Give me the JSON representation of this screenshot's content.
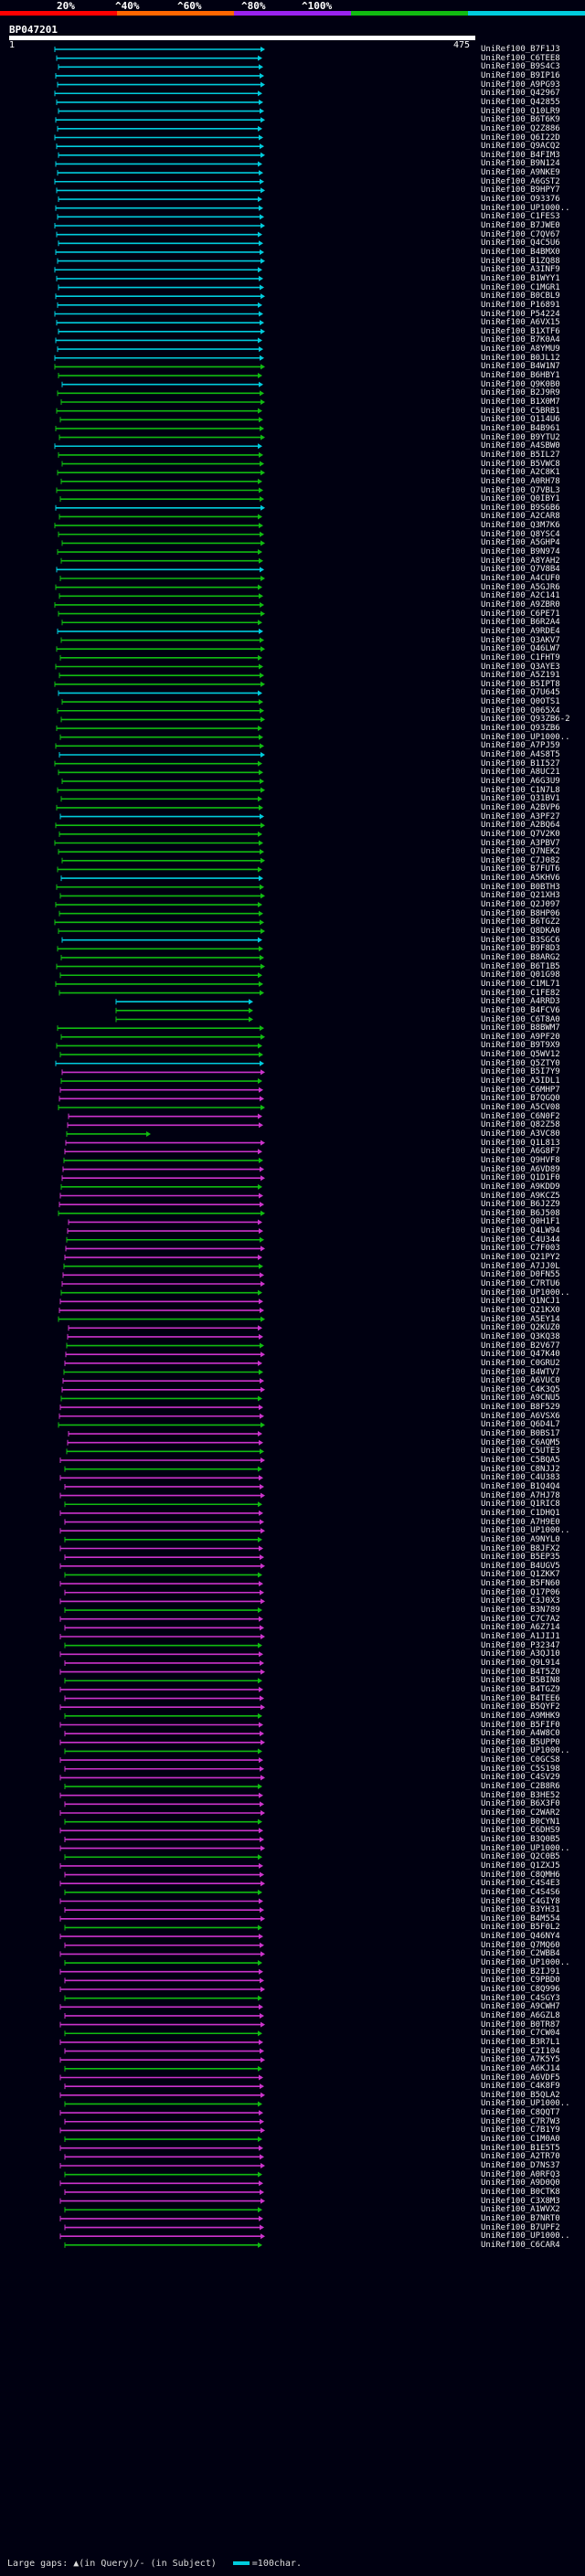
{
  "scale": {
    "labels": [
      "20%",
      "^40%",
      "^60%",
      "^80%",
      "^100%"
    ],
    "colors": [
      "#ff0000",
      "#ff6600",
      "#9922ee",
      "#11bb11",
      "#00ccdd"
    ]
  },
  "query": {
    "id": "BP047201",
    "start": "1",
    "end": "475"
  },
  "footer": {
    "text": "Large gaps: ▲(in Query)/- (in Subject)",
    "legend": "=100char."
  },
  "hit_colors": {
    "cyan": "#00ccdd",
    "green": "#11bb11",
    "magenta": "#cc33cc"
  },
  "hits": [
    "UniRef100_B7F1J3",
    "UniRef100_C6TEE8",
    "UniRef100_B9S4C3",
    "UniRef100_B9IP16",
    "UniRef100_A9PG93",
    "UniRef100_Q42967",
    "UniRef100_Q42855",
    "UniRef100_Q10LR9",
    "UniRef100_B6T6K9",
    "UniRef100_Q2Z886",
    "UniRef100_Q6I22D",
    "UniRef100_Q9ACQ2",
    "UniRef100_B4FIM3",
    "UniRef100_B9N124",
    "UniRef100_A9NKE9",
    "UniRef100_A6GST2",
    "UniRef100_B9HPY7",
    "UniRef100_O93376",
    "UniRef100_UP1000..",
    "UniRef100_C1FES3",
    "UniRef100_B7JWE0",
    "UniRef100_C7QV67",
    "UniRef100_Q4C5U6",
    "UniRef100_B4BMX0",
    "UniRef100_B1ZQ88",
    "UniRef100_A3INF9",
    "UniRef100_B1WYY1",
    "UniRef100_C1MGR1",
    "UniRef100_B0CBL9",
    "UniRef100_P16891",
    "UniRef100_P54224",
    "UniRef100_A6VX15",
    "UniRef100_B1XTF6",
    "UniRef100_B7K0A4",
    "UniRef100_A8YMU9",
    "UniRef100_B0JL12",
    "UniRef100_B4W1N7",
    "UniRef100_B6HBY1",
    "UniRef100_Q9K0B0",
    "UniRef100_B2J9R9",
    "UniRef100_B1X0M7",
    "UniRef100_C5BRB1",
    "UniRef100_Q114U6",
    "UniRef100_B4B961",
    "UniRef100_B9YTU2",
    "UniRef100_A4SBW0",
    "UniRef100_B5IL27",
    "UniRef100_B5VWC8",
    "UniRef100_A2C8K1",
    "UniRef100_A0RH78",
    "UniRef100_Q7VBL3",
    "UniRef100_Q0IBY1",
    "UniRef100_B9S6B6",
    "UniRef100_A2CAR8",
    "UniRef100_Q3M7K6",
    "UniRef100_Q8YSC4",
    "UniRef100_A5GHP4",
    "UniRef100_B9N974",
    "UniRef100_A8YAH2",
    "UniRef100_Q7V8B4",
    "UniRef100_A4CUF0",
    "UniRef100_A5GJR6",
    "UniRef100_A2C141",
    "UniRef100_A9ZBR0",
    "UniRef100_C6PE71",
    "UniRef100_B6R2A4",
    "UniRef100_A9RDE4",
    "UniRef100_Q3AKV7",
    "UniRef100_Q46LW7",
    "UniRef100_C1FHT9",
    "UniRef100_Q3AYE3",
    "UniRef100_A5Z191",
    "UniRef100_B5IPT8",
    "UniRef100_Q7U645",
    "UniRef100_Q0OTS1",
    "UniRef100_Q065X4",
    "UniRef100_Q93ZB6-2",
    "UniRef100_Q93ZB6",
    "UniRef100_UP1000..",
    "UniRef100_A7PJ59",
    "UniRef100_A4S8T5",
    "UniRef100_B1I527",
    "UniRef100_A8UC21",
    "UniRef100_A6G3U9",
    "UniRef100_C1N7L8",
    "UniRef100_Q31BV1",
    "UniRef100_A2BVP6",
    "UniRef100_A3PF27",
    "UniRef100_A2BQ64",
    "UniRef100_Q7V2K0",
    "UniRef100_A3PBV7",
    "UniRef100_Q7NEK2",
    "UniRef100_C7J082",
    "UniRef100_B7FUT6",
    "UniRef100_A5KHV6",
    "UniRef100_B0BTH3",
    "UniRef100_Q21XH3",
    "UniRef100_Q2J097",
    "UniRef100_B8HP06",
    "UniRef100_B6TGZ2",
    "UniRef100_Q8DKA0",
    "UniRef100_B3SGC6",
    "UniRef100_B9F8D3",
    "UniRef100_B8ARG2",
    "UniRef100_B6T1B5",
    "UniRef100_Q01G98",
    "UniRef100_C1ML71",
    "UniRef100_C1FE82",
    "UniRef100_A4RRD3",
    "UniRef100_B4FCV6",
    "UniRef100_C6T8A0",
    "UniRef100_B8BWM7",
    "UniRef100_A9PF20",
    "UniRef100_B9T9X9",
    "UniRef100_Q5WV12",
    "UniRef100_Q5ZTY0",
    "UniRef100_B5I7Y9",
    "UniRef100_A5IDL1",
    "UniRef100_C6MHP7",
    "UniRef100_B7QGQ0",
    "UniRef100_A5CV08",
    "UniRef100_C6N0F2",
    "UniRef100_Q82Z58",
    "UniRef100_A3VC80",
    "UniRef100_Q1L813",
    "UniRef100_A6G8F7",
    "UniRef100_Q9HVF8",
    "UniRef100_A6VD89",
    "UniRef100_Q1D1F0",
    "UniRef100_A9KDD9",
    "UniRef100_A9KCZ5",
    "UniRef100_B6J2Z9",
    "UniRef100_B6J508",
    "UniRef100_Q0H1F1",
    "UniRef100_Q4LW94",
    "UniRef100_C4U344",
    "UniRef100_C7F003",
    "UniRef100_Q21PY2",
    "UniRef100_A7JJ0L",
    "UniRef100_D0FN55",
    "UniRef100_C7RTU6",
    "UniRef100_UP1000..",
    "UniRef100_Q1NCJ1",
    "UniRef100_Q21KX0",
    "UniRef100_A5EY14",
    "UniRef100_Q2KUZ0",
    "UniRef100_Q3KQ38",
    "UniRef100_B2V677",
    "UniRef100_Q47K40",
    "UniRef100_C0GRU2",
    "UniRef100_B4WTV7",
    "UniRef100_A6VUC0",
    "UniRef100_C4K3Q5",
    "UniRef100_A9CNU5",
    "UniRef100_B8F529",
    "UniRef100_A6VSX6",
    "UniRef100_Q6D4L7",
    "UniRef100_B0BS17",
    "UniRef100_C6AQM5",
    "UniRef100_C5UTE3",
    "UniRef100_C5BQA5",
    "UniRef100_C8NJJ2",
    "UniRef100_C4U383",
    "UniRef100_B1Q4Q4",
    "UniRef100_A7HJ78",
    "UniRef100_Q1RIC8",
    "UniRef100_C1DHQ1",
    "UniRef100_A7H9E0",
    "UniRef100_UP1000..",
    "UniRef100_A9NYL0",
    "UniRef100_B8JFX2",
    "UniRef100_B5EP35",
    "UniRef100_B4UGV5",
    "UniRef100_Q1ZKK7",
    "UniRef100_B5FN60",
    "UniRef100_Q17P06",
    "UniRef100_C3J0X3",
    "UniRef100_B3N789",
    "UniRef100_C7C7A2",
    "UniRef100_A6Z714",
    "UniRef100_A1JIJ1",
    "UniRef100_P32347",
    "UniRef100_A3QJ10",
    "UniRef100_Q9L914",
    "UniRef100_B4T5Z0",
    "UniRef100_B5BIN8",
    "UniRef100_B4TGZ9",
    "UniRef100_B4TEE6",
    "UniRef100_B5QYF2",
    "UniRef100_A9MHK9",
    "UniRef100_B5FIF0",
    "UniRef100_A4W8C0",
    "UniRef100_B5UPP0",
    "UniRef100_UP1000..",
    "UniRef100_C0GCS8",
    "UniRef100_C5S198",
    "UniRef100_C4SV29",
    "UniRef100_C2B8R6",
    "UniRef100_B3HE52",
    "UniRef100_B6X3F0",
    "UniRef100_C2WAR2",
    "UniRef100_B0CYN1",
    "UniRef100_C6DHS9",
    "UniRef100_B3Q0B5",
    "UniRef100_UP1000..",
    "UniRef100_Q2C0B5",
    "UniRef100_Q1ZXJ5",
    "UniRef100_C8QMH6",
    "UniRef100_C4S4E3",
    "UniRef100_C4S4S6",
    "UniRef100_C4GIY8",
    "UniRef100_B3YH31",
    "UniRef100_B4M554",
    "UniRef100_B5F0L2",
    "UniRef100_Q46NY4",
    "UniRef100_Q7MQ60",
    "UniRef100_C2WBB4",
    "UniRef100_UP1000..",
    "UniRef100_B2IJ91",
    "UniRef100_C9PBD0",
    "UniRef100_C8Q996",
    "UniRef100_C4SGY3",
    "UniRef100_A9CWH7",
    "UniRef100_A6GZL8",
    "UniRef100_B0TR87",
    "UniRef100_C7CW04",
    "UniRef100_B3R7L1",
    "UniRef100_C2I104",
    "UniRef100_A7K5Y5",
    "UniRef100_A6KJ14",
    "UniRef100_A6VDF5",
    "UniRef100_C4K8F9",
    "UniRef100_B5QLA2",
    "UniRef100_UP1000..",
    "UniRef100_C8QQT7",
    "UniRef100_C7R7W3",
    "UniRef100_C7B1Y9",
    "UniRef100_C1M0A0",
    "UniRef100_B1E5T5",
    "UniRef100_A2TR70",
    "UniRef100_D7NS37",
    "UniRef100_A0RFQ3",
    "UniRef100_A9D0Q0",
    "UniRef100_B0CTK8",
    "UniRef100_C3X8M3",
    "UniRef100_A1WVX2",
    "UniRef100_B7NRT0",
    "UniRef100_B7UPF2",
    "UniRef100_UP1000..",
    "UniRef100_C6CAR4"
  ]
}
